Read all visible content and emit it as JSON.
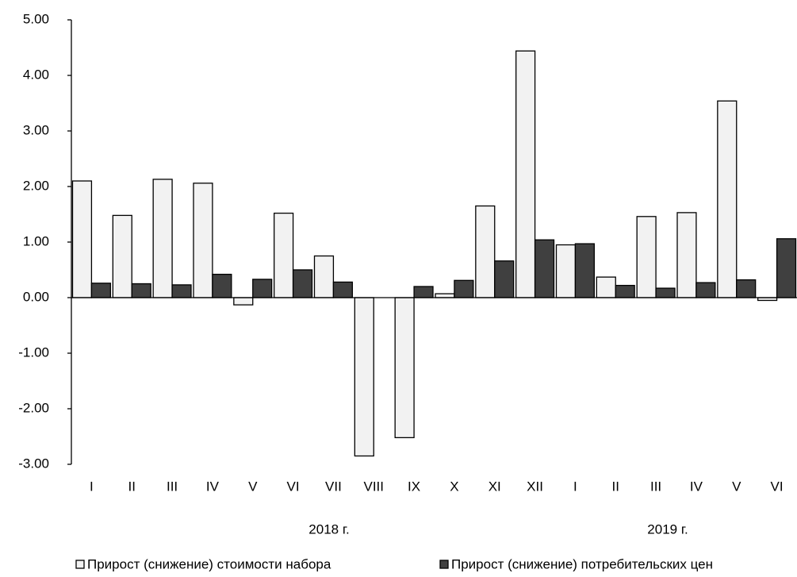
{
  "chart_data": {
    "type": "bar",
    "categories": [
      "I",
      "II",
      "III",
      "IV",
      "V",
      "VI",
      "VII",
      "VIII",
      "IX",
      "X",
      "XI",
      "XII",
      "I",
      "II",
      "III",
      "IV",
      "V",
      "VI"
    ],
    "groups": [
      "2018 г.",
      "2019 г."
    ],
    "series": [
      {
        "name": "Прирост (снижение) стоимости набора",
        "color": "#f2f2f2",
        "values": [
          2.1,
          1.48,
          2.13,
          2.06,
          -0.13,
          1.52,
          0.75,
          -2.85,
          -2.52,
          0.07,
          1.65,
          4.44,
          0.95,
          0.37,
          1.46,
          1.53,
          3.54,
          -0.05
        ]
      },
      {
        "name": "Прирост (снижение) потребительских цен",
        "color": "#404040",
        "values": [
          0.26,
          0.25,
          0.23,
          0.42,
          0.33,
          0.5,
          0.28,
          0,
          0.2,
          0.31,
          0.66,
          1.04,
          0.97,
          0.22,
          0.17,
          0.27,
          0.32,
          1.06
        ]
      }
    ],
    "ylim": [
      -3,
      5
    ],
    "yticks": [
      {
        "value": -3,
        "label": "-3.00"
      },
      {
        "value": -2,
        "label": "-2.00"
      },
      {
        "value": -1,
        "label": "-1.00"
      },
      {
        "value": 0,
        "label": "0.00"
      },
      {
        "value": 1,
        "label": "1.00"
      },
      {
        "value": 2,
        "label": "2.00"
      },
      {
        "value": 3,
        "label": "3.00"
      },
      {
        "value": 4,
        "label": "4.00"
      },
      {
        "value": 5,
        "label": "5.00"
      }
    ],
    "grid": false
  }
}
